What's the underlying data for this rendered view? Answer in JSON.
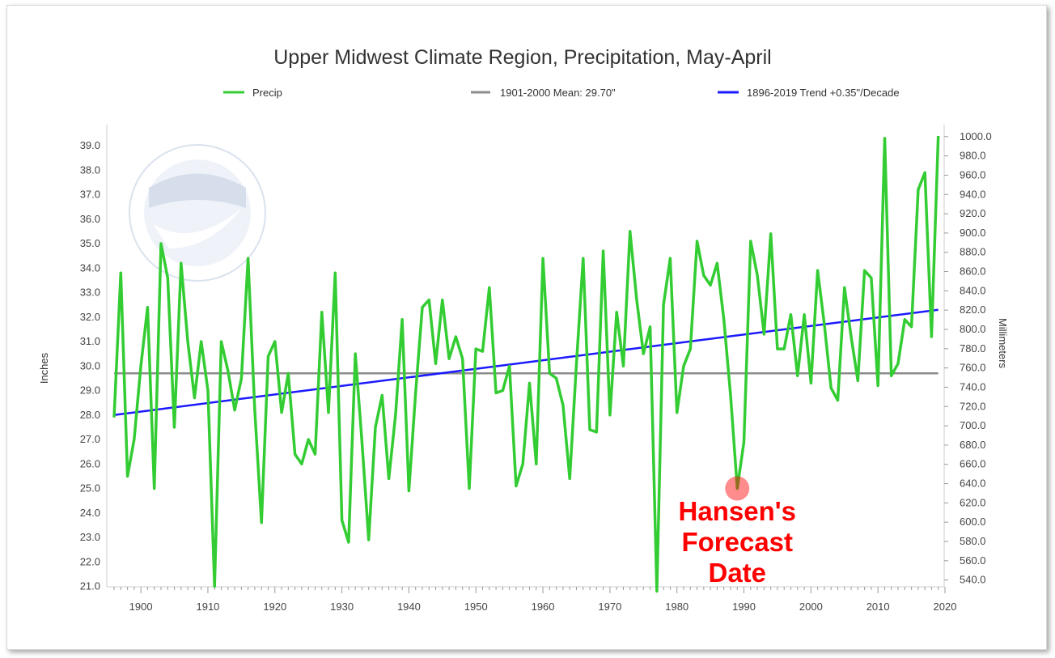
{
  "chart_data": {
    "type": "line",
    "title": "Upper Midwest Climate Region, Precipitation, May-April",
    "ylabel": "Inches",
    "y2label": "Millimeters",
    "xlim": [
      1896,
      2020
    ],
    "ylim": [
      20.8,
      39.5
    ],
    "x_ticks": [
      "1900",
      "1910",
      "1920",
      "1930",
      "1940",
      "1950",
      "1960",
      "1970",
      "1980",
      "1990",
      "2000",
      "2010",
      "2020"
    ],
    "y_ticks": [
      "21.0",
      "22.0",
      "23.0",
      "24.0",
      "25.0",
      "26.0",
      "27.0",
      "28.0",
      "29.0",
      "30.0",
      "31.0",
      "32.0",
      "33.0",
      "34.0",
      "35.0",
      "36.0",
      "37.0",
      "38.0",
      "39.0"
    ],
    "y2_ticks": [
      "540.0",
      "560.0",
      "580.0",
      "600.0",
      "620.0",
      "640.0",
      "660.0",
      "680.0",
      "700.0",
      "720.0",
      "740.0",
      "760.0",
      "780.0",
      "800.0",
      "820.0",
      "840.0",
      "860.0",
      "880.0",
      "900.0",
      "920.0",
      "940.0",
      "960.0",
      "980.0",
      "1000.0"
    ],
    "legend_placement": "top",
    "grid": false,
    "series": [
      {
        "name": "Precip",
        "color": "#33cc33",
        "x": [
          1896,
          1897,
          1898,
          1899,
          1900,
          1901,
          1902,
          1903,
          1904,
          1905,
          1906,
          1907,
          1908,
          1909,
          1910,
          1911,
          1912,
          1913,
          1914,
          1915,
          1916,
          1917,
          1918,
          1919,
          1920,
          1921,
          1922,
          1923,
          1924,
          1925,
          1926,
          1927,
          1928,
          1929,
          1930,
          1931,
          1932,
          1933,
          1934,
          1935,
          1936,
          1937,
          1938,
          1939,
          1940,
          1941,
          1942,
          1943,
          1944,
          1945,
          1946,
          1947,
          1948,
          1949,
          1950,
          1951,
          1952,
          1953,
          1954,
          1955,
          1956,
          1957,
          1958,
          1959,
          1960,
          1961,
          1962,
          1963,
          1964,
          1965,
          1966,
          1967,
          1968,
          1969,
          1970,
          1971,
          1972,
          1973,
          1974,
          1975,
          1976,
          1977,
          1978,
          1979,
          1980,
          1981,
          1982,
          1983,
          1984,
          1985,
          1986,
          1987,
          1988,
          1989,
          1990,
          1991,
          1992,
          1993,
          1994,
          1995,
          1996,
          1997,
          1998,
          1999,
          2000,
          2001,
          2002,
          2003,
          2004,
          2005,
          2006,
          2007,
          2008,
          2009,
          2010,
          2011,
          2012,
          2013,
          2014,
          2015,
          2016,
          2017,
          2018,
          2019
        ],
        "values": [
          27.9,
          33.8,
          25.5,
          27.0,
          30.0,
          32.4,
          25.0,
          35.0,
          33.6,
          27.5,
          34.2,
          31.0,
          28.7,
          31.0,
          29.0,
          21.0,
          31.0,
          29.8,
          28.2,
          29.5,
          34.4,
          28.2,
          23.6,
          30.4,
          31.0,
          28.1,
          29.7,
          26.4,
          26.0,
          27.0,
          26.4,
          32.2,
          28.1,
          33.8,
          23.7,
          22.8,
          30.5,
          26.9,
          22.9,
          27.5,
          28.8,
          25.4,
          28.0,
          31.9,
          24.9,
          28.9,
          32.4,
          32.7,
          30.1,
          32.7,
          30.3,
          31.2,
          30.3,
          25.0,
          30.7,
          30.6,
          33.2,
          28.9,
          29.0,
          30.0,
          25.1,
          26.0,
          29.3,
          26.0,
          34.4,
          29.7,
          29.5,
          28.4,
          25.4,
          30.1,
          34.4,
          27.4,
          27.3,
          34.7,
          28.0,
          32.2,
          30.0,
          35.5,
          32.7,
          30.5,
          31.6,
          20.8,
          32.5,
          34.4,
          28.1,
          30.0,
          30.7,
          35.1,
          33.7,
          33.3,
          34.2,
          31.9,
          28.8,
          25.0,
          26.9,
          35.1,
          33.7,
          31.3,
          35.4,
          30.7,
          30.7,
          32.1,
          29.6,
          32.1,
          29.3,
          33.9,
          31.7,
          29.1,
          28.6,
          33.2,
          31.2,
          29.4,
          33.9,
          33.6,
          29.2,
          39.3,
          29.6,
          30.1,
          31.9,
          31.6,
          37.2,
          37.9,
          31.2,
          39.4
        ]
      },
      {
        "name": "1901-2000 Mean: 29.70\"",
        "color": "#8c8c8c",
        "x": [
          1896,
          2019
        ],
        "values": [
          29.7,
          29.7
        ]
      },
      {
        "name": "1896-2019 Trend +0.35\"/Decade",
        "color": "#1a1aff",
        "x": [
          1896,
          2019
        ],
        "values": [
          28.0,
          32.3
        ]
      }
    ],
    "annotation": {
      "lines": [
        "Hansen's",
        "Forecast",
        "Date"
      ],
      "x": 1989,
      "y": 25.0,
      "color": "#ff0000"
    }
  }
}
